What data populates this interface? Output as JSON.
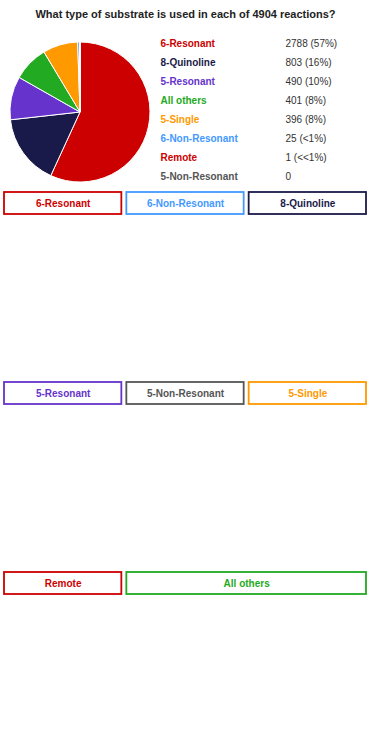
{
  "chart_data": {
    "type": "pie",
    "title": "What type of substrate is used in each of 4904 reactions?",
    "categories": [
      "6-Resonant",
      "8-Quinoline",
      "5-Resonant",
      "All others",
      "5-Single",
      "6-Non-Resonant",
      "Remote",
      "5-Non-Resonant"
    ],
    "values": [
      2788,
      803,
      490,
      401,
      396,
      25,
      1,
      0
    ],
    "value_labels": [
      "2788 (57%)",
      "803 (16%)",
      "490 (10%)",
      "401 (8%)",
      "396 (8%)",
      "25 (<1%)",
      "1 (<<1%)",
      "0"
    ],
    "colors": [
      "#cc0000",
      "#1a1a4a",
      "#6633cc",
      "#22aa22",
      "#ff9900",
      "#4499ff",
      "#cc0000",
      "#555555"
    ],
    "annotations": [
      "6-Resonant",
      "6-Non-Resonant",
      "8-Quinoline",
      "5-Resonant",
      "5-Non-Resonant",
      "5-Single",
      "Remote",
      "All others"
    ]
  }
}
